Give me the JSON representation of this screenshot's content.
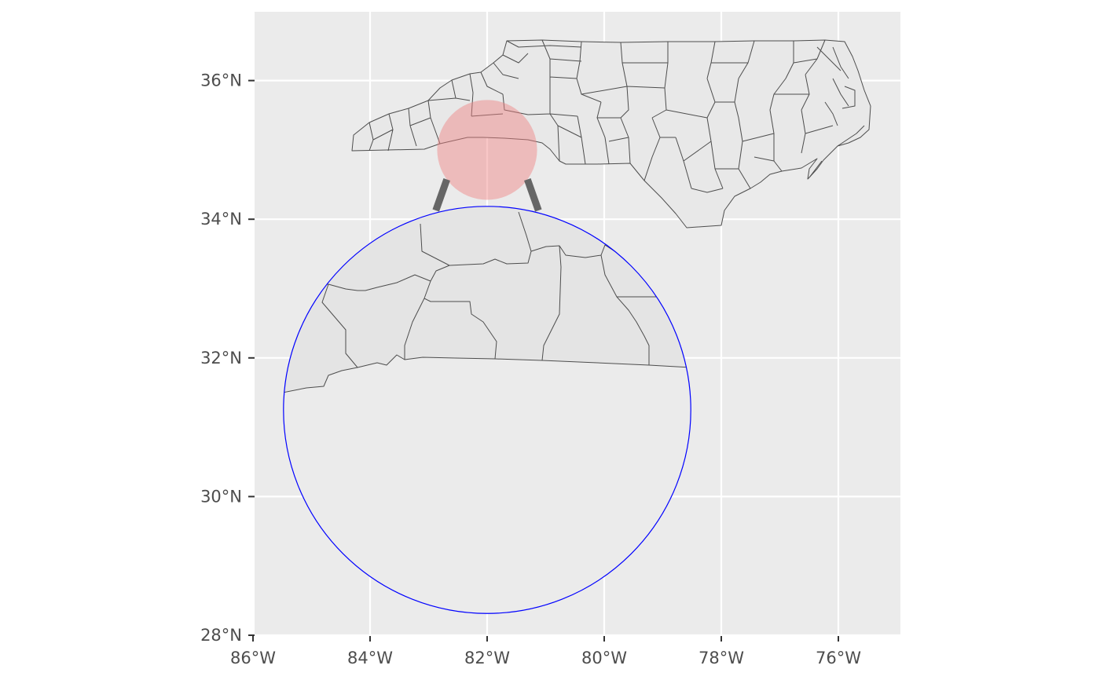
{
  "map": {
    "type": "zoomed-inset map (ggmapinset style)",
    "x_axis": {
      "ticks": [
        {
          "lon": -86,
          "label": "86°W"
        },
        {
          "lon": -84,
          "label": "84°W"
        },
        {
          "lon": -82,
          "label": "82°W"
        },
        {
          "lon": -80,
          "label": "80°W"
        },
        {
          "lon": -78,
          "label": "78°W"
        },
        {
          "lon": -76,
          "label": "76°W"
        }
      ],
      "range": [
        -86,
        -75
      ]
    },
    "y_axis": {
      "ticks": [
        {
          "lat": 28,
          "label": "28°N"
        },
        {
          "lat": 30,
          "label": "30°N"
        },
        {
          "lat": 32,
          "label": "32°N"
        },
        {
          "lat": 34,
          "label": "34°N"
        },
        {
          "lat": 36,
          "label": "36°N"
        }
      ],
      "range": [
        28,
        37
      ]
    },
    "grid": true,
    "colors": {
      "panel": "#ebebeb",
      "grid": "#ffffff",
      "county_fill": "#e8e8e8",
      "county_border": "#4d4d4d",
      "inset_source": "#f08080",
      "inset_border": "#0000ff",
      "connector": "#666666"
    },
    "inset_source": {
      "center_lon": -82.0,
      "center_lat": 35.0,
      "radius_deg": 0.72
    },
    "inset_target": {
      "center_lon": -82.0,
      "center_lat": 31.25,
      "radius_deg": 2.85
    },
    "connector_style": "dashed"
  }
}
